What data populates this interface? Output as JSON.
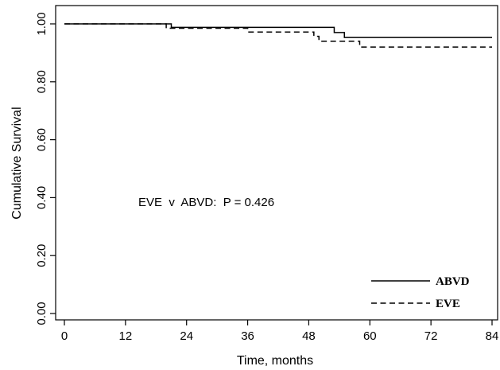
{
  "chart_data": {
    "type": "line",
    "xlabel": "Time, months",
    "ylabel": "Cumulative Survival",
    "xlim": [
      0,
      84
    ],
    "ylim": [
      0,
      1
    ],
    "xticks": [
      0,
      12,
      24,
      36,
      48,
      60,
      72,
      84
    ],
    "xtick_labels": [
      "0",
      "12",
      "24",
      "36",
      "48",
      "60",
      "72",
      "84"
    ],
    "yticks": [
      0,
      0.2,
      0.4,
      0.6,
      0.8,
      1.0
    ],
    "ytick_labels": [
      "0.00",
      "0.20",
      "0.40",
      "0.60",
      "0.80",
      "1.00"
    ],
    "grid": false,
    "legend_position": "bottom-right",
    "annotation": "EVE  v  ABVD:  P = 0.426",
    "series": [
      {
        "name": "ABVD",
        "style": "solid",
        "step": true,
        "x": [
          0,
          21,
          53,
          55,
          84
        ],
        "y": [
          1.0,
          0.988,
          0.97,
          0.953,
          0.953
        ]
      },
      {
        "name": "EVE",
        "style": "dashed",
        "step": true,
        "x": [
          0,
          20,
          36,
          49,
          50,
          58,
          84
        ],
        "y": [
          1.0,
          0.985,
          0.972,
          0.957,
          0.94,
          0.92,
          0.92
        ]
      }
    ]
  }
}
